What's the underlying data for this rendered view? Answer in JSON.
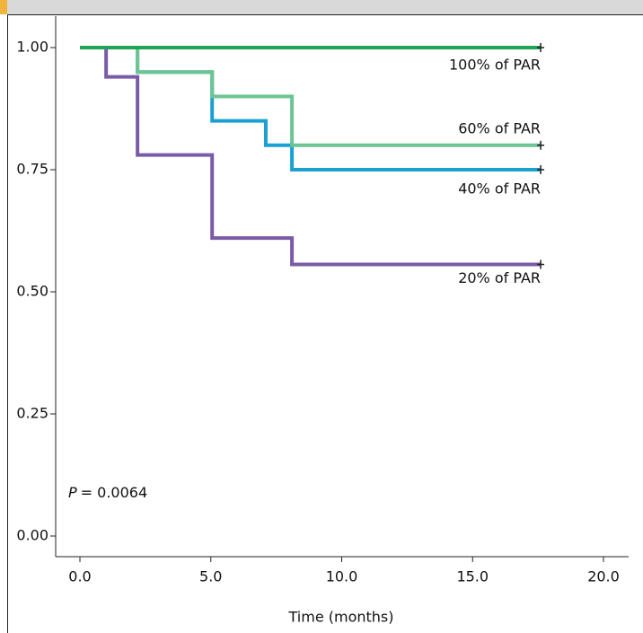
{
  "chart_data": {
    "type": "step",
    "x_label": "Time (months)",
    "annotation": {
      "var": "P",
      "text": "= 0.0064"
    },
    "xlim": [
      -0.5,
      21
    ],
    "ylim": [
      -0.05,
      1.035
    ],
    "xticks": [
      {
        "value": 0,
        "label": "0.0"
      },
      {
        "value": 5,
        "label": "5.0"
      },
      {
        "value": 10,
        "label": "10.0"
      },
      {
        "value": 15,
        "label": "15.0"
      },
      {
        "value": 20,
        "label": "20.0"
      }
    ],
    "yticks": [
      {
        "value": 0,
        "label": "0.00"
      },
      {
        "value": 0.25,
        "label": "0.25"
      },
      {
        "value": 0.5,
        "label": "0.50"
      },
      {
        "value": 0.75,
        "label": "0.75"
      },
      {
        "value": 1,
        "label": "1.00"
      }
    ],
    "series": [
      {
        "name": "20% of PAR",
        "color": "#7a5ba8",
        "x": [
          0,
          1.0,
          2.2,
          5.05,
          8.1,
          17.6
        ],
        "values": [
          1,
          0.94,
          0.78,
          0.61,
          0.556,
          0.556
        ]
      },
      {
        "name": "40% of PAR",
        "color": "#1ba0d2",
        "x": [
          0,
          2.2,
          5.05,
          7.1,
          8.1,
          17.6
        ],
        "values": [
          1,
          0.95,
          0.85,
          0.8,
          0.75,
          0.75
        ]
      },
      {
        "name": "60% of PAR",
        "color": "#6cc592",
        "x": [
          0,
          2.2,
          5.05,
          8.1,
          17.6
        ],
        "values": [
          1,
          0.95,
          0.9,
          0.8,
          0.8
        ]
      },
      {
        "name": "100% of PAR",
        "color": "#1fa456",
        "x": [
          0,
          17.6
        ],
        "values": [
          1,
          1
        ]
      }
    ]
  }
}
